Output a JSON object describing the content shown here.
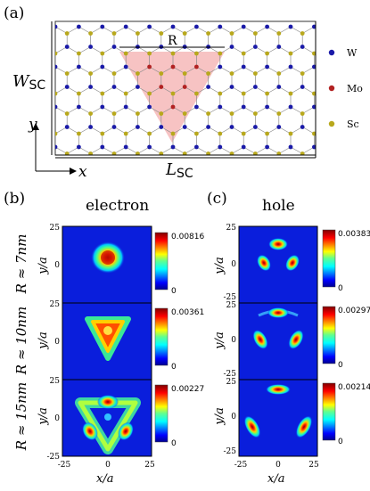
{
  "panel_a": {
    "label": "(a)",
    "w_label_main": "W",
    "w_label_sub": "SC",
    "l_label_main": "L",
    "l_label_sub": "SC",
    "r_label": "R",
    "axis_y": "y",
    "axis_x": "x",
    "legend": [
      {
        "name": "W",
        "color": "#1a1aa8"
      },
      {
        "name": "Mo",
        "color": "#b22222"
      },
      {
        "name": "Sc",
        "color": "#b8a81c"
      }
    ]
  },
  "panel_b": {
    "label": "(b)",
    "title": "electron"
  },
  "panel_c": {
    "label": "(c)",
    "title": "hole"
  },
  "rows": [
    {
      "label": "R ≈ 7nm"
    },
    {
      "label": "R ≈ 10nm"
    },
    {
      "label": "R ≈ 15nm"
    }
  ],
  "colorbars": {
    "electron": [
      "0.00816",
      "0.00361",
      "0.00227"
    ],
    "hole": [
      "0.00383",
      "0.00297",
      "0.00214"
    ],
    "zero": "0"
  },
  "axes": {
    "ylabel": "y/a",
    "xlabel": "x/a",
    "y_ticks_first": [
      "25",
      "0",
      ""
    ],
    "y_ticks_middle": [
      "25",
      "0",
      ""
    ],
    "y_ticks_last": [
      "25",
      "0",
      "-25"
    ],
    "x_ticks": [
      "-25",
      "0",
      "25"
    ],
    "hole_y_ticks_first": [
      "25",
      "0",
      "-25"
    ],
    "hole_y_ticks_middle": [
      "25",
      "0",
      "-25"
    ],
    "hole_y_ticks_last": [
      "25",
      "0",
      "-25"
    ]
  },
  "colors": {
    "map_background": "#0a1edc",
    "triangle_fill": "#f6b8b8"
  }
}
